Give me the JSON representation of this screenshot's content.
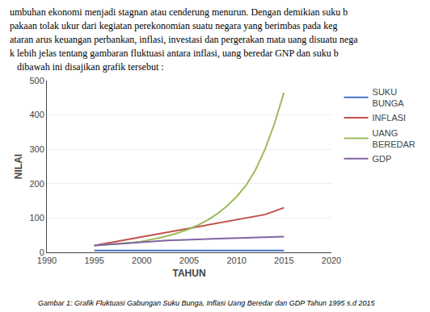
{
  "chart_data": {
    "type": "line",
    "xlabel": "TAHUN",
    "ylabel": "NILAI",
    "x": [
      1995,
      1996,
      1997,
      1998,
      1999,
      2000,
      2001,
      2002,
      2003,
      2004,
      2005,
      2006,
      2007,
      2008,
      2009,
      2010,
      2011,
      2012,
      2013,
      2014,
      2015
    ],
    "series": [
      {
        "name": "SUKU\nBUNGA",
        "color": "#4472C4",
        "values": [
          5,
          5,
          5,
          5,
          5,
          5,
          5,
          5,
          5,
          5,
          5,
          5,
          5,
          5,
          5,
          5,
          5,
          5,
          5,
          5,
          5
        ]
      },
      {
        "name": "INFLASI",
        "color": "#C0504D",
        "values": [
          20,
          25,
          30,
          35,
          40,
          45,
          50,
          55,
          60,
          65,
          70,
          75,
          80,
          85,
          90,
          95,
          100,
          105,
          110,
          120,
          130
        ]
      },
      {
        "name": "UANG\nBEREDAR",
        "color": "#9BBB59",
        "values": [
          20,
          22,
          24,
          26,
          28,
          32,
          37,
          43,
          50,
          58,
          68,
          80,
          95,
          113,
          135,
          162,
          195,
          240,
          300,
          375,
          465
        ]
      },
      {
        "name": "GDP",
        "color": "#8064A2",
        "values": [
          20,
          22,
          24,
          26,
          28,
          30,
          32,
          34,
          35,
          36,
          37,
          38,
          39,
          40,
          40,
          41,
          42,
          43,
          44,
          45,
          46
        ]
      }
    ],
    "xlim": [
      1990,
      2020
    ],
    "ylim": [
      0,
      500
    ],
    "xticks": [
      1990,
      1995,
      2000,
      2005,
      2010,
      2015,
      2020
    ],
    "yticks": [
      0,
      100,
      200,
      300,
      400,
      500
    ],
    "grid": "y",
    "legend": "right",
    "annotations": [
      "umbuhan ekonomi menjadi stagnan atau cenderung menurun. Dengan demikian suku b",
      "pakaan tolak ukur dari kegiatan perekonomian suatu negara yang berimbas pada keg",
      "ataran arus keuangan perbankan, inflasi, investasi dan pergerakan mata uang disuatu nega",
      "k lebih jelas tentang gambaran fluktuasi antara inflasi, uang beredar GNP dan suku b",
      "   dibawah ini disajikan grafik tersebut :"
    ],
    "caption": "Gambar 1: Grafik Fluktuasi Gabungan Suku Bunga, Inflasi Uang Beredar dan GDP Tahun 1995 s.d 2015"
  }
}
